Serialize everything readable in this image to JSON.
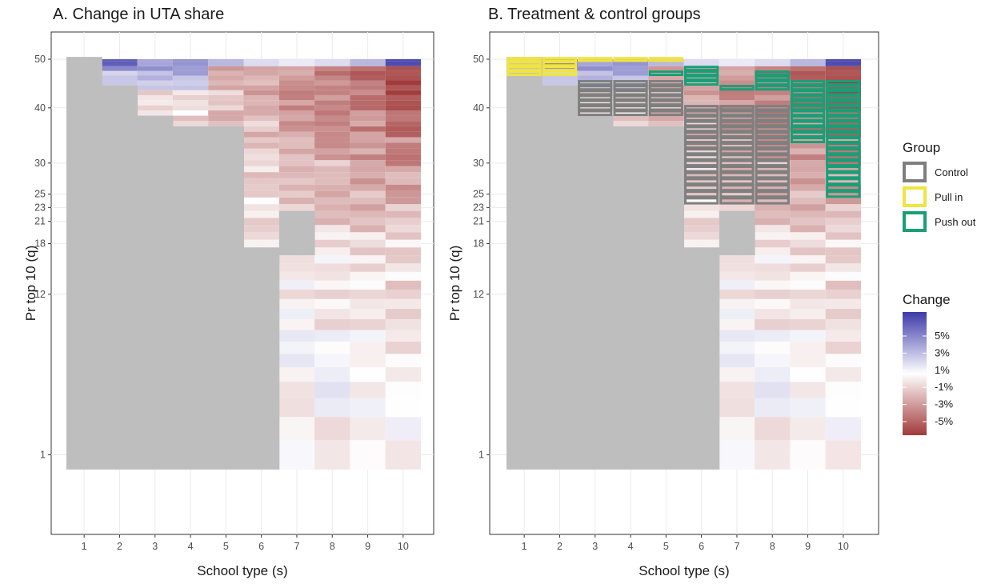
{
  "chart_data": [
    {
      "type": "heatmap",
      "panel": "A",
      "title": "A. Change in UTA share",
      "xlabel": "School type (s)",
      "ylabel": "Pr top 10 (q)",
      "x_ticks": [
        "1",
        "2",
        "3",
        "4",
        "5",
        "6",
        "7",
        "8",
        "9",
        "10"
      ],
      "y_ticks": [
        "1",
        "12",
        "18",
        "21",
        "23",
        "25",
        "30",
        "40",
        "50"
      ],
      "y_scale": "sqrt",
      "ylim": [
        0,
        50
      ],
      "xlim": [
        1,
        10
      ],
      "grid": true,
      "missing_color": "#bebebe",
      "gray_region": [
        {
          "school_type": 1,
          "q_range": [
            1,
            50
          ]
        },
        {
          "school_type": 2,
          "q_range": [
            1,
            44
          ]
        },
        {
          "school_type": 3,
          "q_range": [
            1,
            38
          ]
        },
        {
          "school_type": 4,
          "q_range": [
            1,
            36
          ]
        },
        {
          "school_type": 5,
          "q_range": [
            1,
            36
          ]
        },
        {
          "school_type": 6,
          "q_range": [
            1,
            17
          ]
        },
        {
          "school_type": 7,
          "q_range": [
            17,
            22
          ]
        }
      ],
      "sample_values_pct": [
        {
          "school_type": 2,
          "q": 50,
          "change": 5
        },
        {
          "school_type": 3,
          "q": 50,
          "change": 3
        },
        {
          "school_type": 4,
          "q": 50,
          "change": 3
        },
        {
          "school_type": 5,
          "q": 50,
          "change": 2
        },
        {
          "school_type": 10,
          "q": 50,
          "change": 5
        },
        {
          "school_type": 8,
          "q": 47,
          "change": -4
        },
        {
          "school_type": 9,
          "q": 43,
          "change": -4
        },
        {
          "school_type": 10,
          "q": 41,
          "change": -5
        },
        {
          "school_type": 10,
          "q": 36,
          "change": -4
        },
        {
          "school_type": 10,
          "q": 30,
          "change": -4
        },
        {
          "school_type": 9,
          "q": 30,
          "change": -2
        },
        {
          "school_type": 10,
          "q": 25,
          "change": -3
        },
        {
          "school_type": 9,
          "q": 23,
          "change": 1
        },
        {
          "school_type": 10,
          "q": 15,
          "change": -1
        }
      ]
    },
    {
      "type": "heatmap",
      "panel": "B",
      "title": "B. Treatment & control groups",
      "xlabel": "School type (s)",
      "ylabel": "Pr top 10 (q)",
      "x_ticks": [
        "1",
        "2",
        "3",
        "4",
        "5",
        "6",
        "7",
        "8",
        "9",
        "10"
      ],
      "y_ticks": [
        "1",
        "12",
        "18",
        "21",
        "23",
        "25",
        "30",
        "40",
        "50"
      ],
      "y_scale": "sqrt",
      "groups": [
        {
          "name": "Control",
          "color": "#7f7f7f",
          "cells": [
            {
              "school_type": 3,
              "q_range": [
                39,
                45
              ]
            },
            {
              "school_type": 4,
              "q_range": [
                39,
                45
              ]
            },
            {
              "school_type": 5,
              "q_range": [
                39,
                45
              ]
            },
            {
              "school_type": 6,
              "q_range": [
                24,
                40
              ]
            },
            {
              "school_type": 7,
              "q_range": [
                24,
                40
              ]
            },
            {
              "school_type": 8,
              "q_range": [
                24,
                40
              ]
            }
          ]
        },
        {
          "name": "Pull in",
          "color": "#f0e442",
          "cells": [
            {
              "school_type": 1,
              "q_range": [
                47,
                50
              ]
            },
            {
              "school_type": 2,
              "q_range": [
                47,
                50
              ]
            },
            {
              "school_type": 3,
              "q_range": [
                50,
                50
              ]
            },
            {
              "school_type": 4,
              "q_range": [
                50,
                50
              ]
            },
            {
              "school_type": 5,
              "q_range": [
                50,
                50
              ]
            }
          ]
        },
        {
          "name": "Push out",
          "color": "#1b9e77",
          "cells": [
            {
              "school_type": 5,
              "q_range": [
                47,
                47
              ]
            },
            {
              "school_type": 6,
              "q_range": [
                45,
                48
              ]
            },
            {
              "school_type": 7,
              "q_range": [
                44,
                44
              ]
            },
            {
              "school_type": 8,
              "q_range": [
                44,
                47
              ]
            },
            {
              "school_type": 9,
              "q_range": [
                34,
                45
              ]
            },
            {
              "school_type": 10,
              "q_range": [
                25,
                45
              ]
            }
          ]
        }
      ]
    }
  ],
  "legend": {
    "group_title": "Group",
    "groups": [
      {
        "label": "Control",
        "color": "#7f7f7f"
      },
      {
        "label": "Pull in",
        "color": "#f0e442"
      },
      {
        "label": "Push out",
        "color": "#1b9e77"
      }
    ],
    "change_title": "Change",
    "change_labels": [
      "5%",
      "3%",
      "1%",
      "-1%",
      "-3%",
      "-5%"
    ],
    "colors": {
      "high": "#3d3aa8",
      "mid": "#ffffff",
      "low": "#a13a3a"
    }
  }
}
